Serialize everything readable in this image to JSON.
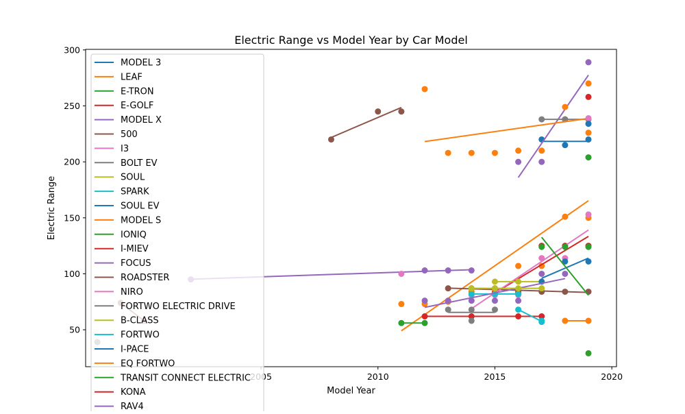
{
  "chart_data": {
    "type": "scatter",
    "title": "Electric Range vs Model Year by Car Model",
    "xlabel": "Model Year",
    "ylabel": "Electric Range",
    "xlim": [
      1997.5,
      2020.2
    ],
    "ylim": [
      17,
      300.5
    ],
    "xticks": [
      2005,
      2010,
      2015,
      2020
    ],
    "yticks": [
      50,
      100,
      150,
      200,
      250,
      300
    ],
    "grid": false,
    "legend_position": "upper-left",
    "series": [
      {
        "name": "MODEL 3",
        "color": "#1f77b4",
        "points": [
          [
            2017,
            220
          ],
          [
            2018,
            215
          ],
          [
            2019,
            220
          ]
        ]
      },
      {
        "name": "LEAF",
        "color": "#ff7f0e",
        "points": [
          [
            2011,
            73
          ],
          [
            2012,
            73
          ],
          [
            2013,
            75
          ],
          [
            2014,
            84
          ],
          [
            2015,
            84
          ],
          [
            2016,
            107
          ],
          [
            2017,
            107
          ],
          [
            2018,
            151
          ],
          [
            2019,
            150
          ],
          [
            2019,
            226
          ]
        ]
      },
      {
        "name": "E-TRON",
        "color": "#2ca02c",
        "points": [
          [
            2019,
            204
          ]
        ]
      },
      {
        "name": "E-GOLF",
        "color": "#d62728",
        "points": [
          [
            2015,
            83
          ],
          [
            2016,
            83
          ],
          [
            2017,
            125
          ],
          [
            2018,
            125
          ],
          [
            2019,
            125
          ]
        ]
      },
      {
        "name": "MODEL X",
        "color": "#9467bd",
        "points": [
          [
            2016,
            200
          ],
          [
            2017,
            200
          ],
          [
            2018,
            238
          ],
          [
            2019,
            289
          ]
        ]
      },
      {
        "name": "500",
        "color": "#8c564b",
        "points": [
          [
            2013,
            87
          ],
          [
            2014,
            87
          ],
          [
            2015,
            87
          ],
          [
            2016,
            84
          ],
          [
            2017,
            84
          ],
          [
            2018,
            84
          ],
          [
            2019,
            84
          ]
        ]
      },
      {
        "name": "I3",
        "color": "#e377c2",
        "points": [
          [
            2014,
            81
          ],
          [
            2015,
            81
          ],
          [
            2016,
            81
          ],
          [
            2017,
            114
          ],
          [
            2018,
            114
          ],
          [
            2019,
            153
          ]
        ]
      },
      {
        "name": "BOLT EV",
        "color": "#7f7f7f",
        "points": [
          [
            2017,
            238
          ],
          [
            2018,
            238
          ],
          [
            2019,
            238
          ]
        ]
      },
      {
        "name": "SOUL",
        "color": "#bcbd22",
        "points": [
          [
            2015,
            93
          ],
          [
            2016,
            93
          ],
          [
            2017,
            93
          ]
        ]
      },
      {
        "name": "SPARK",
        "color": "#17becf",
        "points": [
          [
            2014,
            82
          ],
          [
            2015,
            82
          ],
          [
            2016,
            82
          ]
        ]
      },
      {
        "name": "SOUL EV",
        "color": "#1f77b4",
        "points": [
          [
            2017,
            93
          ],
          [
            2018,
            111
          ],
          [
            2019,
            111
          ]
        ]
      },
      {
        "name": "MODEL S",
        "color": "#ff7f0e",
        "points": [
          [
            2012,
            265
          ],
          [
            2013,
            208
          ],
          [
            2014,
            208
          ],
          [
            2015,
            208
          ],
          [
            2016,
            210
          ],
          [
            2017,
            210
          ],
          [
            2018,
            249
          ],
          [
            2019,
            270
          ]
        ]
      },
      {
        "name": "IONIQ",
        "color": "#2ca02c",
        "points": [
          [
            2017,
            124
          ],
          [
            2018,
            124
          ],
          [
            2019,
            124
          ],
          [
            2019,
            29
          ]
        ]
      },
      {
        "name": "I-MIEV",
        "color": "#d62728",
        "points": [
          [
            2012,
            62
          ],
          [
            2014,
            62
          ],
          [
            2016,
            62
          ],
          [
            2017,
            62
          ]
        ]
      },
      {
        "name": "FOCUS",
        "color": "#9467bd",
        "points": [
          [
            2012,
            76
          ],
          [
            2013,
            76
          ],
          [
            2014,
            76
          ],
          [
            2015,
            76
          ],
          [
            2016,
            76
          ],
          [
            2017,
            100
          ],
          [
            2018,
            100
          ]
        ]
      },
      {
        "name": "ROADSTER",
        "color": "#8c564b",
        "points": [
          [
            2008,
            220
          ],
          [
            2010,
            245
          ],
          [
            2011,
            245
          ]
        ]
      },
      {
        "name": "NIRO",
        "color": "#e377c2",
        "points": [
          [
            2019,
            239
          ]
        ]
      },
      {
        "name": "FORTWO ELECTRIC DRIVE",
        "color": "#7f7f7f",
        "points": [
          [
            2013,
            68
          ],
          [
            2014,
            68
          ],
          [
            2015,
            68
          ],
          [
            2014,
            58
          ]
        ]
      },
      {
        "name": "B-CLASS",
        "color": "#bcbd22",
        "points": [
          [
            2014,
            87
          ],
          [
            2015,
            87
          ],
          [
            2016,
            87
          ],
          [
            2017,
            87
          ]
        ]
      },
      {
        "name": "FORTWO",
        "color": "#17becf",
        "points": [
          [
            2016,
            68
          ],
          [
            2017,
            57
          ],
          [
            2017,
            58
          ]
        ]
      },
      {
        "name": "I-PACE",
        "color": "#1f77b4",
        "points": [
          [
            2019,
            234
          ]
        ]
      },
      {
        "name": "EQ FORTWO",
        "color": "#ff7f0e",
        "points": [
          [
            2018,
            58
          ],
          [
            2019,
            58
          ]
        ]
      },
      {
        "name": "TRANSIT CONNECT ELECTRIC",
        "color": "#2ca02c",
        "points": [
          [
            2011,
            56
          ],
          [
            2012,
            56
          ]
        ]
      },
      {
        "name": "KONA",
        "color": "#d62728",
        "points": [
          [
            2019,
            258
          ]
        ]
      },
      {
        "name": "RAV4",
        "color": "#9467bd",
        "points": [
          [
            2002,
            95
          ],
          [
            2012,
            103
          ],
          [
            2013,
            103
          ],
          [
            2014,
            103
          ]
        ]
      },
      {
        "name": "",
        "color": "#e377c2",
        "points": [
          [
            2011,
            100
          ]
        ]
      },
      {
        "name": "",
        "color": "#8c564b",
        "points": [
          [
            1999,
            74
          ],
          [
            2000,
            58
          ]
        ]
      },
      {
        "name": "",
        "color": "#7f7f7f",
        "points": [
          [
            1998,
            39
          ]
        ]
      }
    ]
  }
}
